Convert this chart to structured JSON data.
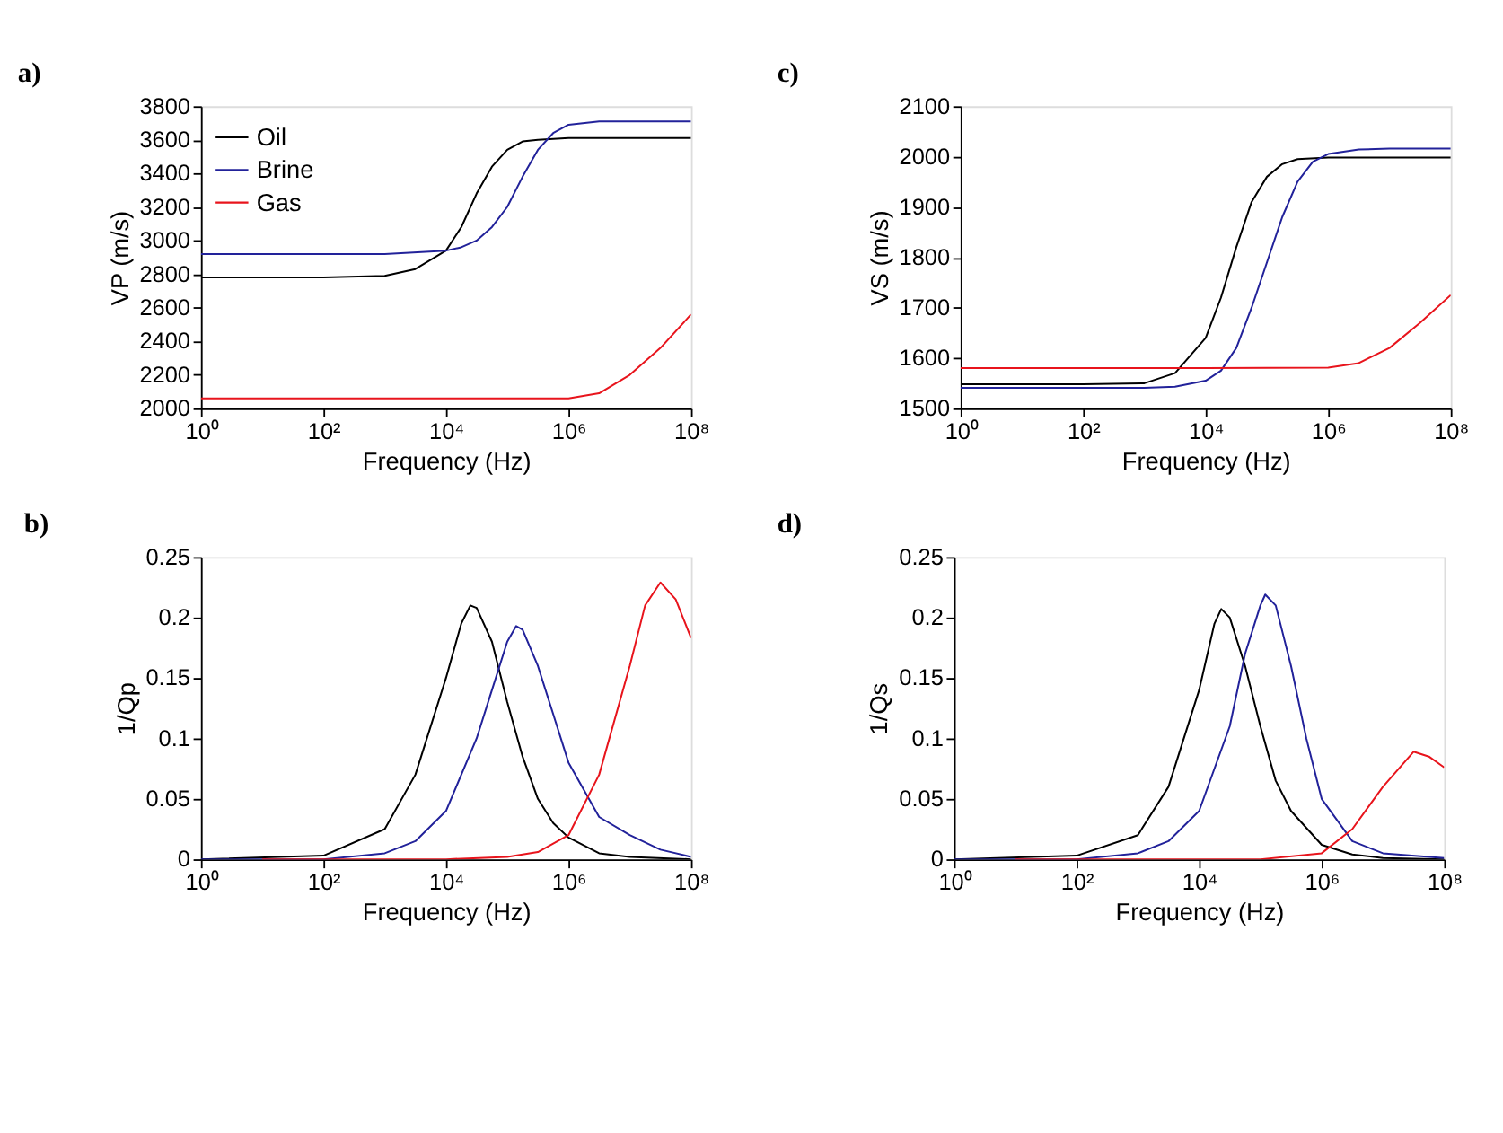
{
  "chart_data": [
    {
      "type": "line",
      "title": "a)",
      "xlabel": "Frequency (Hz)",
      "ylabel": "VP (m/s)",
      "log": "x",
      "legend": "top left",
      "grid": false,
      "line_style": "solid",
      "xlim": [
        1,
        100000000
      ],
      "xticks": [
        {
          "value": 1,
          "label": "10⁰"
        },
        {
          "value": 100,
          "label": "10²"
        },
        {
          "value": 10000,
          "label": "10⁴"
        },
        {
          "value": 1000000,
          "label": "10⁶"
        },
        {
          "value": 100000000,
          "label": "10⁸"
        }
      ],
      "ylim": [
        2000,
        3800
      ],
      "yticks": [
        2000,
        2200,
        2400,
        2600,
        2800,
        3000,
        3200,
        3400,
        3600,
        3800
      ],
      "series": [
        {
          "name": "Oil",
          "color": "#000000",
          "x": [
            1,
            100,
            1000,
            3162,
            10000,
            17783,
            31623,
            56234,
            100000,
            177828,
            316228,
            1000000,
            100000000
          ],
          "values": [
            2780,
            2780,
            2790,
            2830,
            2940,
            3080,
            3280,
            3440,
            3540,
            3590,
            3600,
            3610,
            3610
          ]
        },
        {
          "name": "Brine",
          "color": "#22229a",
          "x": [
            1,
            100,
            1000,
            10000,
            17783,
            31623,
            56234,
            100000,
            177828,
            316228,
            562341,
            1000000,
            3162278,
            10000000,
            100000000
          ],
          "values": [
            2920,
            2920,
            2920,
            2940,
            2960,
            3000,
            3080,
            3200,
            3380,
            3540,
            3640,
            3690,
            3710,
            3710,
            3710
          ]
        },
        {
          "name": "Gas",
          "color": "#e8141c",
          "x": [
            1,
            100,
            10000,
            1000000,
            3162278,
            10000000,
            31622777,
            100000000
          ],
          "values": [
            2060,
            2060,
            2060,
            2060,
            2090,
            2200,
            2360,
            2560
          ]
        }
      ]
    },
    {
      "type": "line",
      "title": "c)",
      "xlabel": "Frequency (Hz)",
      "ylabel": "VS (m/s)",
      "log": "x",
      "legend": "top left",
      "grid": false,
      "line_style": "solid",
      "xlim": [
        1,
        100000000
      ],
      "xticks": [
        {
          "value": 1,
          "label": "10⁰"
        },
        {
          "value": 100,
          "label": "10²"
        },
        {
          "value": 10000,
          "label": "10⁴"
        },
        {
          "value": 1000000,
          "label": "10⁶"
        },
        {
          "value": 100000000,
          "label": "10⁸"
        }
      ],
      "ylim": [
        1500,
        2100
      ],
      "yticks": [
        1500,
        1600,
        1700,
        1800,
        1900,
        2000,
        2100
      ],
      "series": [
        {
          "name": "Oil",
          "color": "#000000",
          "x": [
            1,
            100,
            1000,
            3162,
            10000,
            17783,
            31623,
            56234,
            100000,
            177828,
            316228,
            1000000,
            100000000
          ],
          "values": [
            1548,
            1548,
            1550,
            1570,
            1640,
            1720,
            1820,
            1910,
            1960,
            1985,
            1995,
            1998,
            1998
          ]
        },
        {
          "name": "Brine",
          "color": "#22229a",
          "x": [
            1,
            100,
            1000,
            3162,
            10000,
            17783,
            31623,
            56234,
            100000,
            177828,
            316228,
            562341,
            1000000,
            3162278,
            10000000,
            100000000
          ],
          "values": [
            1541,
            1541,
            1541,
            1543,
            1555,
            1575,
            1620,
            1700,
            1790,
            1880,
            1950,
            1990,
            2005,
            2014,
            2016,
            2016
          ]
        },
        {
          "name": "Gas",
          "color": "#e8141c",
          "x": [
            1,
            100,
            10000,
            1000000,
            3162278,
            10000000,
            31622777,
            100000000
          ],
          "values": [
            1580,
            1580,
            1580,
            1581,
            1590,
            1620,
            1670,
            1725
          ]
        }
      ]
    },
    {
      "type": "line",
      "title": "b)",
      "xlabel": "Frequency (Hz)",
      "ylabel": "1/Qp",
      "log": "x",
      "legend": "top left",
      "grid": false,
      "line_style": "solid",
      "xlim": [
        1,
        100000000
      ],
      "xticks": [
        {
          "value": 1,
          "label": "10⁰"
        },
        {
          "value": 100,
          "label": "10²"
        },
        {
          "value": 10000,
          "label": "10⁴"
        },
        {
          "value": 1000000,
          "label": "10⁶"
        },
        {
          "value": 100000000,
          "label": "10⁸"
        }
      ],
      "ylim": [
        0,
        0.25
      ],
      "yticks": [
        0,
        0.05,
        0.1,
        0.15,
        0.2,
        0.25
      ],
      "series": [
        {
          "name": "Oil",
          "color": "#000000",
          "x": [
            1,
            100,
            1000,
            3162,
            10000,
            17783,
            25000,
            31623,
            56234,
            100000,
            177828,
            316228,
            562341,
            1000000,
            3162278,
            10000000,
            100000000
          ],
          "values": [
            0,
            0.003,
            0.025,
            0.07,
            0.15,
            0.195,
            0.21,
            0.208,
            0.18,
            0.13,
            0.085,
            0.05,
            0.03,
            0.018,
            0.005,
            0.002,
            0
          ]
        },
        {
          "name": "Brine",
          "color": "#22229a",
          "x": [
            1,
            100,
            1000,
            3162,
            10000,
            31623,
            56234,
            100000,
            140000,
            177828,
            316228,
            562341,
            1000000,
            3162278,
            10000000,
            31622777,
            100000000
          ],
          "values": [
            0,
            0,
            0.005,
            0.015,
            0.04,
            0.1,
            0.14,
            0.18,
            0.193,
            0.19,
            0.16,
            0.12,
            0.08,
            0.035,
            0.02,
            0.008,
            0.002
          ]
        },
        {
          "name": "Gas",
          "color": "#e8141c",
          "x": [
            10,
            10000,
            100000,
            316228,
            1000000,
            3162278,
            10000000,
            17782794,
            31622777,
            56234133,
            100000000
          ],
          "values": [
            0,
            0,
            0.002,
            0.006,
            0.02,
            0.07,
            0.16,
            0.21,
            0.229,
            0.215,
            0.183
          ]
        }
      ]
    },
    {
      "type": "line",
      "title": "d)",
      "xlabel": "Frequency (Hz)",
      "ylabel": "1/Qs",
      "log": "x",
      "legend": "top left",
      "grid": false,
      "line_style": "solid",
      "xlim": [
        1,
        100000000
      ],
      "xticks": [
        {
          "value": 1,
          "label": "10⁰"
        },
        {
          "value": 100,
          "label": "10²"
        },
        {
          "value": 10000,
          "label": "10⁴"
        },
        {
          "value": 1000000,
          "label": "10⁶"
        },
        {
          "value": 100000000,
          "label": "10⁸"
        }
      ],
      "ylim": [
        0,
        0.25
      ],
      "yticks": [
        0,
        0.05,
        0.1,
        0.15,
        0.2,
        0.25
      ],
      "series": [
        {
          "name": "Oil",
          "color": "#000000",
          "x": [
            1,
            100,
            1000,
            3162,
            10000,
            17783,
            23000,
            31623,
            56234,
            100000,
            177828,
            316228,
            1000000,
            3162278,
            10000000,
            100000000
          ],
          "values": [
            0,
            0.003,
            0.02,
            0.06,
            0.14,
            0.195,
            0.207,
            0.2,
            0.16,
            0.11,
            0.065,
            0.04,
            0.012,
            0.004,
            0.001,
            0
          ]
        },
        {
          "name": "Brine",
          "color": "#22229a",
          "x": [
            1,
            100,
            1000,
            3162,
            10000,
            31623,
            56234,
            100000,
            120000,
            177828,
            316228,
            562341,
            1000000,
            3162278,
            10000000,
            100000000
          ],
          "values": [
            0,
            0,
            0.005,
            0.015,
            0.04,
            0.11,
            0.17,
            0.21,
            0.219,
            0.21,
            0.16,
            0.1,
            0.05,
            0.015,
            0.005,
            0.001
          ]
        },
        {
          "name": "Gas",
          "color": "#e8141c",
          "x": [
            10,
            100000,
            1000000,
            3162278,
            10000000,
            31622777,
            56234133,
            100000000
          ],
          "values": [
            0,
            0,
            0.005,
            0.025,
            0.06,
            0.089,
            0.085,
            0.076
          ]
        }
      ]
    }
  ]
}
